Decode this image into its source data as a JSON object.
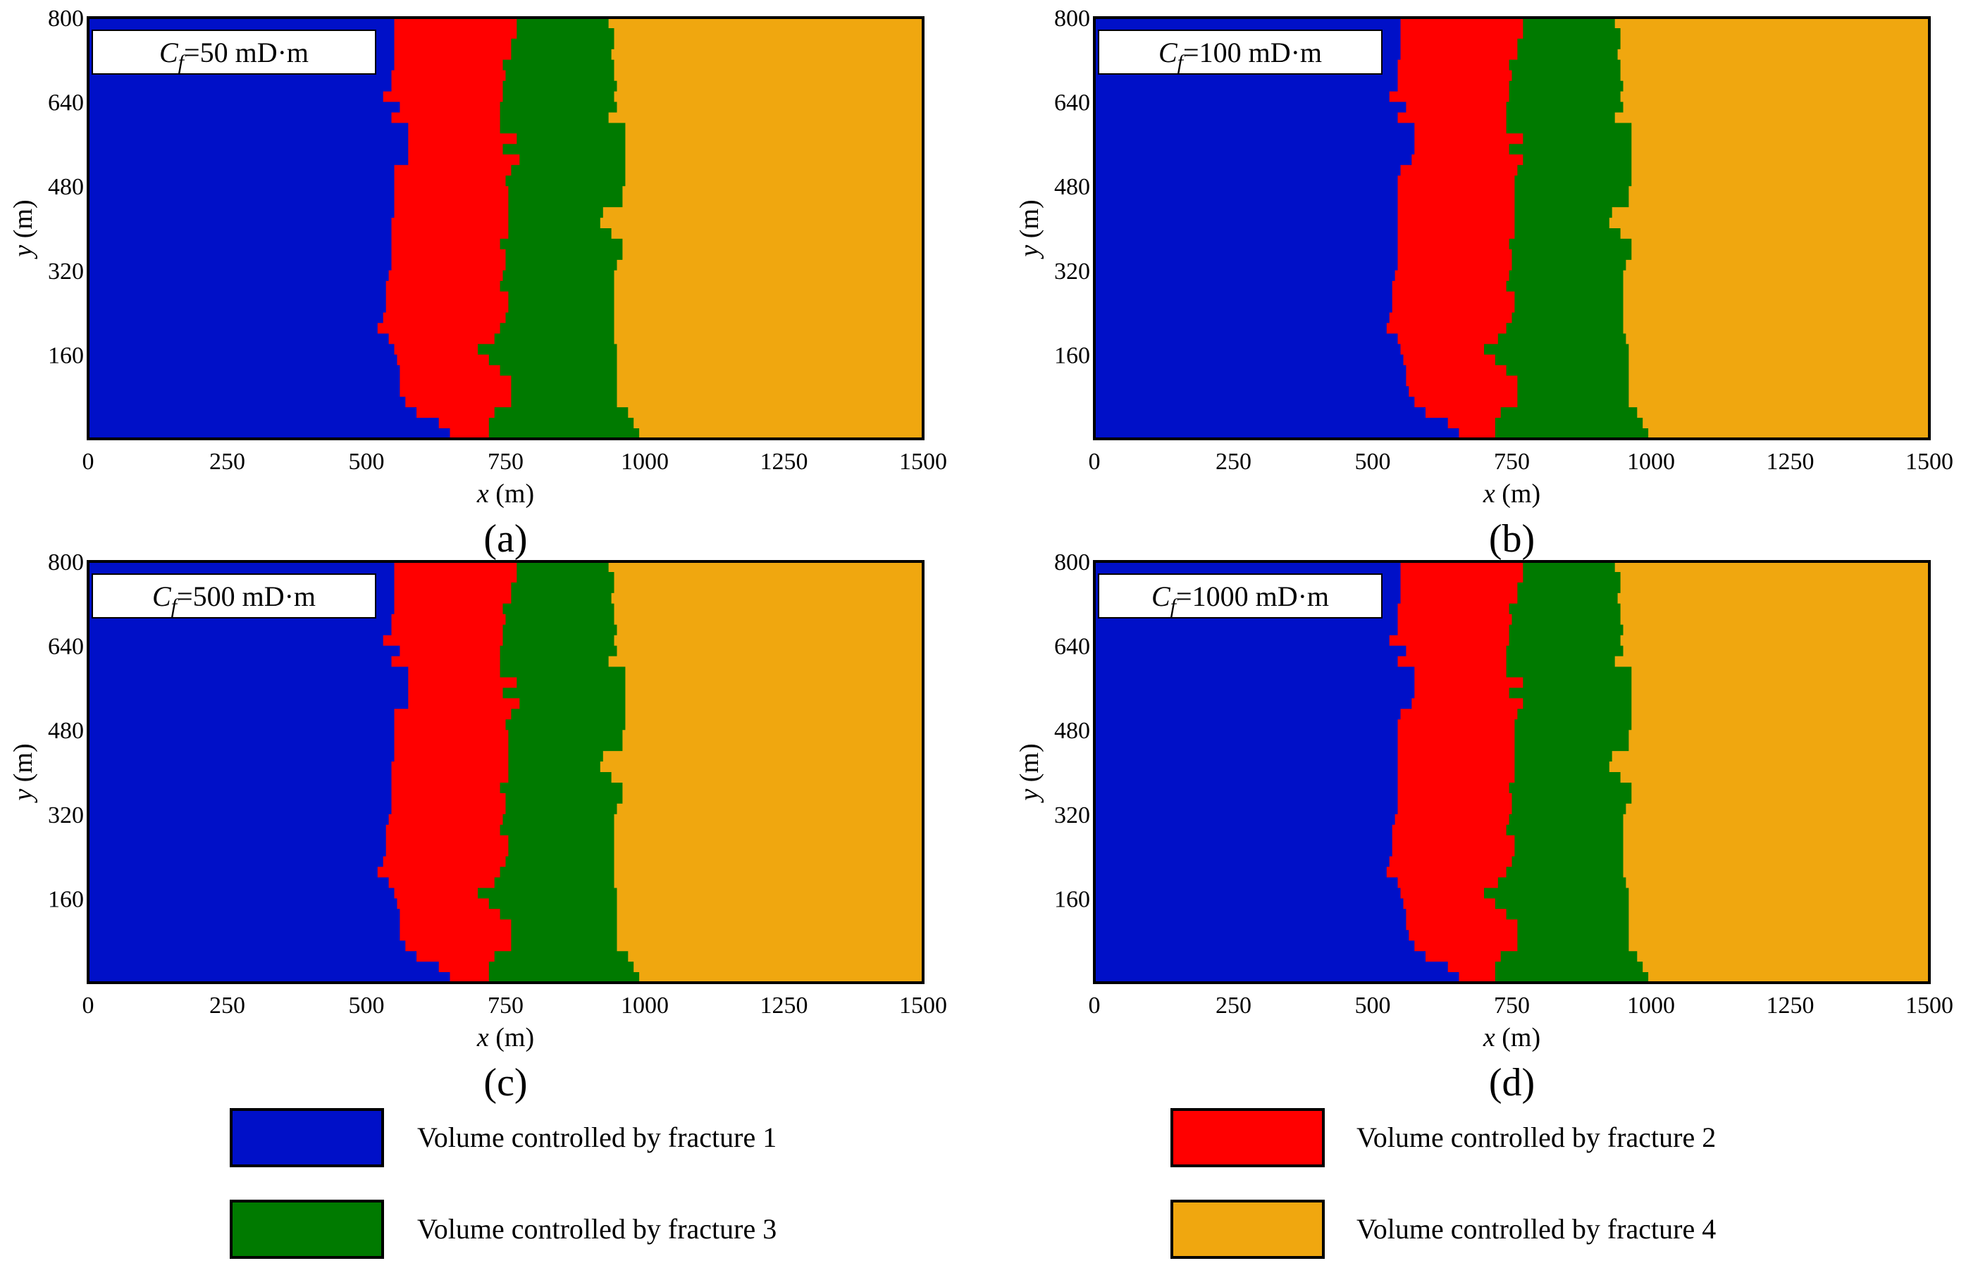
{
  "chart_data": [
    {
      "type": "heatmap",
      "panel": "(a)",
      "annotation": {
        "symbol": "C",
        "subscript": "f",
        "rest": "=50 mD·m"
      },
      "xlabel": {
        "var": "x",
        "unit": " (m)"
      },
      "ylabel": {
        "var": "y",
        "unit": " (m)"
      },
      "xlim": [
        0,
        1500
      ],
      "ylim": [
        0,
        800
      ],
      "xticks": [
        "0",
        "250",
        "500",
        "750",
        "1000",
        "1250",
        "1500"
      ],
      "yticks": [
        "160",
        "320",
        "480",
        "640",
        "800"
      ],
      "y_samples": [
        0,
        20,
        40,
        60,
        80,
        100,
        120,
        140,
        160,
        180,
        200,
        220,
        240,
        260,
        280,
        300,
        320,
        340,
        360,
        380,
        400,
        420,
        440,
        460,
        480,
        500,
        520,
        540,
        560,
        580,
        600,
        620,
        640,
        660,
        680,
        700,
        720,
        740,
        760,
        780,
        800
      ],
      "boundary_1_2": [
        650,
        630,
        590,
        570,
        560,
        560,
        560,
        555,
        550,
        540,
        520,
        530,
        535,
        535,
        535,
        540,
        545,
        545,
        545,
        545,
        545,
        550,
        550,
        550,
        550,
        550,
        575,
        575,
        575,
        575,
        545,
        560,
        530,
        545,
        545,
        550,
        550,
        550,
        550,
        550,
        540
      ],
      "boundary_2_3": [
        720,
        720,
        730,
        760,
        760,
        760,
        740,
        720,
        700,
        730,
        740,
        750,
        755,
        755,
        740,
        745,
        750,
        750,
        740,
        755,
        755,
        755,
        755,
        755,
        750,
        760,
        775,
        745,
        770,
        740,
        740,
        740,
        745,
        745,
        750,
        745,
        760,
        760,
        770,
        770,
        770
      ],
      "boundary_3_4": [
        990,
        980,
        970,
        950,
        950,
        950,
        950,
        950,
        950,
        945,
        945,
        945,
        945,
        945,
        945,
        945,
        950,
        960,
        960,
        940,
        920,
        925,
        960,
        960,
        965,
        965,
        965,
        965,
        965,
        965,
        935,
        950,
        945,
        950,
        945,
        945,
        940,
        945,
        945,
        935,
        935
      ]
    },
    {
      "type": "heatmap",
      "panel": "(b)",
      "annotation": {
        "symbol": "C",
        "subscript": "f",
        "rest": "=100 mD·m"
      },
      "xlabel": {
        "var": "x",
        "unit": " (m)"
      },
      "ylabel": {
        "var": "y",
        "unit": " (m)"
      },
      "xlim": [
        0,
        1500
      ],
      "ylim": [
        0,
        800
      ],
      "xticks": [
        "0",
        "250",
        "500",
        "750",
        "1000",
        "1250",
        "1500"
      ],
      "yticks": [
        "160",
        "320",
        "480",
        "640",
        "800"
      ],
      "y_samples": [
        0,
        20,
        40,
        60,
        80,
        100,
        120,
        140,
        160,
        180,
        200,
        220,
        240,
        260,
        280,
        300,
        320,
        340,
        360,
        380,
        400,
        420,
        440,
        460,
        480,
        500,
        520,
        540,
        560,
        580,
        600,
        620,
        640,
        660,
        680,
        700,
        720,
        740,
        760,
        780,
        800
      ],
      "boundary_1_2": [
        655,
        635,
        595,
        575,
        565,
        560,
        560,
        555,
        550,
        545,
        525,
        530,
        535,
        535,
        535,
        540,
        545,
        545,
        545,
        545,
        545,
        545,
        545,
        545,
        545,
        550,
        570,
        575,
        575,
        575,
        545,
        560,
        530,
        545,
        545,
        545,
        550,
        550,
        550,
        550,
        540
      ],
      "boundary_2_3": [
        720,
        720,
        730,
        760,
        760,
        760,
        740,
        720,
        700,
        725,
        740,
        750,
        755,
        755,
        740,
        745,
        750,
        750,
        745,
        755,
        755,
        755,
        755,
        755,
        755,
        760,
        770,
        745,
        770,
        740,
        740,
        740,
        745,
        745,
        750,
        745,
        760,
        760,
        770,
        770,
        770
      ],
      "boundary_3_4": [
        995,
        985,
        975,
        960,
        960,
        960,
        960,
        960,
        960,
        955,
        950,
        950,
        950,
        950,
        950,
        950,
        955,
        965,
        965,
        945,
        925,
        930,
        960,
        960,
        965,
        965,
        965,
        965,
        965,
        965,
        935,
        950,
        945,
        950,
        945,
        945,
        940,
        945,
        945,
        935,
        935
      ]
    },
    {
      "type": "heatmap",
      "panel": "(c)",
      "annotation": {
        "symbol": "C",
        "subscript": "f",
        "rest": "=500 mD·m"
      },
      "xlabel": {
        "var": "x",
        "unit": " (m)"
      },
      "ylabel": {
        "var": "y",
        "unit": " (m)"
      },
      "xlim": [
        0,
        1500
      ],
      "ylim": [
        0,
        800
      ],
      "xticks": [
        "0",
        "250",
        "500",
        "750",
        "1000",
        "1250",
        "1500"
      ],
      "yticks": [
        "160",
        "320",
        "480",
        "640",
        "800"
      ],
      "y_samples": [
        0,
        20,
        40,
        60,
        80,
        100,
        120,
        140,
        160,
        180,
        200,
        220,
        240,
        260,
        280,
        300,
        320,
        340,
        360,
        380,
        400,
        420,
        440,
        460,
        480,
        500,
        520,
        540,
        560,
        580,
        600,
        620,
        640,
        660,
        680,
        700,
        720,
        740,
        760,
        780,
        800
      ],
      "boundary_1_2": [
        650,
        630,
        590,
        570,
        560,
        560,
        560,
        555,
        550,
        540,
        520,
        530,
        535,
        535,
        535,
        540,
        545,
        545,
        545,
        545,
        545,
        550,
        550,
        550,
        550,
        550,
        575,
        575,
        575,
        575,
        545,
        560,
        530,
        545,
        545,
        550,
        550,
        550,
        550,
        550,
        540
      ],
      "boundary_2_3": [
        720,
        720,
        730,
        760,
        760,
        760,
        740,
        720,
        700,
        730,
        740,
        750,
        755,
        755,
        740,
        745,
        750,
        750,
        740,
        755,
        755,
        755,
        755,
        755,
        750,
        760,
        775,
        745,
        770,
        740,
        740,
        740,
        745,
        745,
        750,
        745,
        760,
        760,
        770,
        770,
        770
      ],
      "boundary_3_4": [
        990,
        980,
        970,
        950,
        950,
        950,
        950,
        950,
        950,
        945,
        945,
        945,
        945,
        945,
        945,
        945,
        950,
        960,
        960,
        940,
        920,
        925,
        960,
        960,
        965,
        965,
        965,
        965,
        965,
        965,
        935,
        950,
        945,
        950,
        945,
        945,
        940,
        945,
        945,
        935,
        935
      ]
    },
    {
      "type": "heatmap",
      "panel": "(d)",
      "annotation": {
        "symbol": "C",
        "subscript": "f",
        "rest": "=1000 mD·m"
      },
      "xlabel": {
        "var": "x",
        "unit": " (m)"
      },
      "ylabel": {
        "var": "y",
        "unit": " (m)"
      },
      "xlim": [
        0,
        1500
      ],
      "ylim": [
        0,
        800
      ],
      "xticks": [
        "0",
        "250",
        "500",
        "750",
        "1000",
        "1250",
        "1500"
      ],
      "yticks": [
        "160",
        "320",
        "480",
        "640",
        "800"
      ],
      "y_samples": [
        0,
        20,
        40,
        60,
        80,
        100,
        120,
        140,
        160,
        180,
        200,
        220,
        240,
        260,
        280,
        300,
        320,
        340,
        360,
        380,
        400,
        420,
        440,
        460,
        480,
        500,
        520,
        540,
        560,
        580,
        600,
        620,
        640,
        660,
        680,
        700,
        720,
        740,
        760,
        780,
        800
      ],
      "boundary_1_2": [
        655,
        635,
        595,
        575,
        565,
        560,
        560,
        555,
        550,
        545,
        525,
        530,
        535,
        535,
        535,
        540,
        545,
        545,
        545,
        545,
        545,
        545,
        545,
        545,
        545,
        550,
        570,
        575,
        575,
        575,
        545,
        560,
        530,
        545,
        545,
        545,
        550,
        550,
        550,
        550,
        540
      ],
      "boundary_2_3": [
        720,
        720,
        730,
        760,
        760,
        760,
        740,
        720,
        700,
        725,
        740,
        750,
        755,
        755,
        740,
        745,
        750,
        750,
        745,
        755,
        755,
        755,
        755,
        755,
        755,
        760,
        770,
        745,
        770,
        740,
        740,
        740,
        745,
        745,
        750,
        745,
        760,
        760,
        770,
        770,
        770
      ],
      "boundary_3_4": [
        995,
        985,
        975,
        960,
        960,
        960,
        960,
        960,
        960,
        955,
        950,
        950,
        950,
        950,
        950,
        950,
        955,
        965,
        965,
        945,
        925,
        930,
        960,
        960,
        965,
        965,
        965,
        965,
        965,
        965,
        935,
        950,
        945,
        950,
        945,
        945,
        940,
        945,
        945,
        935,
        935
      ]
    }
  ],
  "legend": {
    "entries": [
      {
        "label": "Volume controlled by fracture 1",
        "color": "#0010C8"
      },
      {
        "label": "Volume controlled by fracture 2",
        "color": "#FF0000"
      },
      {
        "label": "Volume controlled by fracture 3",
        "color": "#007A00"
      },
      {
        "label": "Volume controlled by fracture 4",
        "color": "#F0A70F"
      }
    ]
  },
  "colors": {
    "fracture_1": "#0010C8",
    "fracture_2": "#FF0000",
    "fracture_3": "#007A00",
    "fracture_4": "#F0A70F",
    "axis": "#000000"
  }
}
